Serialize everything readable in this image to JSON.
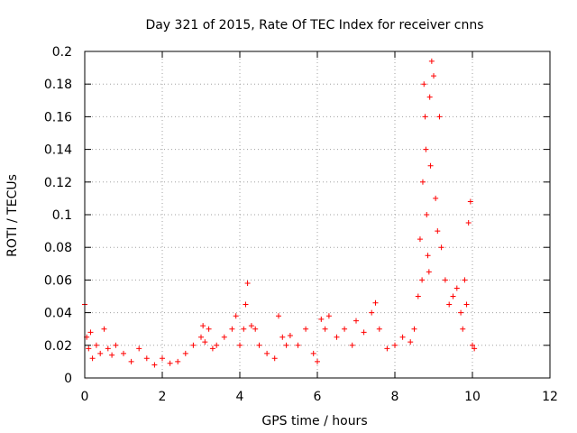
{
  "chart_data": {
    "type": "scatter",
    "title": "Day 321 of 2015, Rate Of TEC Index for receiver cnns",
    "xlabel": "GPS time / hours",
    "ylabel": "ROTI / TECUs",
    "xlim": [
      0,
      12
    ],
    "ylim": [
      0,
      0.2
    ],
    "x_ticks": [
      0,
      2,
      4,
      6,
      8,
      10,
      12
    ],
    "y_ticks": [
      0,
      0.02,
      0.04,
      0.06,
      0.08,
      0.1,
      0.12,
      0.14,
      0.16,
      0.18,
      0.2
    ],
    "x_tick_labels": [
      "0",
      "2",
      "4",
      "6",
      "8",
      "10",
      "12"
    ],
    "y_tick_labels": [
      "0",
      "0.02",
      "0.04",
      "0.06",
      "0.08",
      "0.1",
      "0.12",
      "0.14",
      "0.16",
      "0.18",
      "0.2"
    ],
    "grid": true,
    "marker": "plus",
    "color": "#ff0000",
    "series": [
      {
        "name": "ROTI",
        "x": [
          0.0,
          0.05,
          0.1,
          0.15,
          0.2,
          0.3,
          0.4,
          0.5,
          0.6,
          0.7,
          0.8,
          1.0,
          1.2,
          1.4,
          1.6,
          1.8,
          2.0,
          2.2,
          2.4,
          2.6,
          2.8,
          3.0,
          3.05,
          3.1,
          3.2,
          3.3,
          3.4,
          3.6,
          3.8,
          3.9,
          4.0,
          4.1,
          4.15,
          4.2,
          4.3,
          4.4,
          4.5,
          4.7,
          4.9,
          5.0,
          5.1,
          5.2,
          5.3,
          5.5,
          5.7,
          5.9,
          6.0,
          6.1,
          6.2,
          6.3,
          6.5,
          6.7,
          6.9,
          7.0,
          7.2,
          7.4,
          7.5,
          7.6,
          7.8,
          8.0,
          8.2,
          8.4,
          8.5,
          8.6,
          8.65,
          8.7,
          8.72,
          8.75,
          8.78,
          8.8,
          8.82,
          8.85,
          8.88,
          8.9,
          8.92,
          8.95,
          9.0,
          9.05,
          9.1,
          9.15,
          9.2,
          9.3,
          9.4,
          9.5,
          9.6,
          9.7,
          9.75,
          9.8,
          9.85,
          9.9,
          9.95,
          10.0,
          10.05
        ],
        "y": [
          0.045,
          0.025,
          0.018,
          0.028,
          0.012,
          0.02,
          0.015,
          0.03,
          0.018,
          0.014,
          0.02,
          0.015,
          0.01,
          0.018,
          0.012,
          0.008,
          0.012,
          0.009,
          0.01,
          0.015,
          0.02,
          0.025,
          0.032,
          0.022,
          0.03,
          0.018,
          0.02,
          0.025,
          0.03,
          0.038,
          0.02,
          0.03,
          0.045,
          0.058,
          0.032,
          0.03,
          0.02,
          0.015,
          0.012,
          0.038,
          0.025,
          0.02,
          0.026,
          0.02,
          0.03,
          0.015,
          0.01,
          0.036,
          0.03,
          0.038,
          0.025,
          0.03,
          0.02,
          0.035,
          0.028,
          0.04,
          0.046,
          0.03,
          0.018,
          0.02,
          0.025,
          0.022,
          0.03,
          0.05,
          0.085,
          0.06,
          0.12,
          0.18,
          0.16,
          0.14,
          0.1,
          0.075,
          0.065,
          0.172,
          0.13,
          0.194,
          0.185,
          0.11,
          0.09,
          0.16,
          0.08,
          0.06,
          0.045,
          0.05,
          0.055,
          0.04,
          0.03,
          0.06,
          0.045,
          0.095,
          0.108,
          0.02,
          0.018
        ]
      }
    ]
  }
}
